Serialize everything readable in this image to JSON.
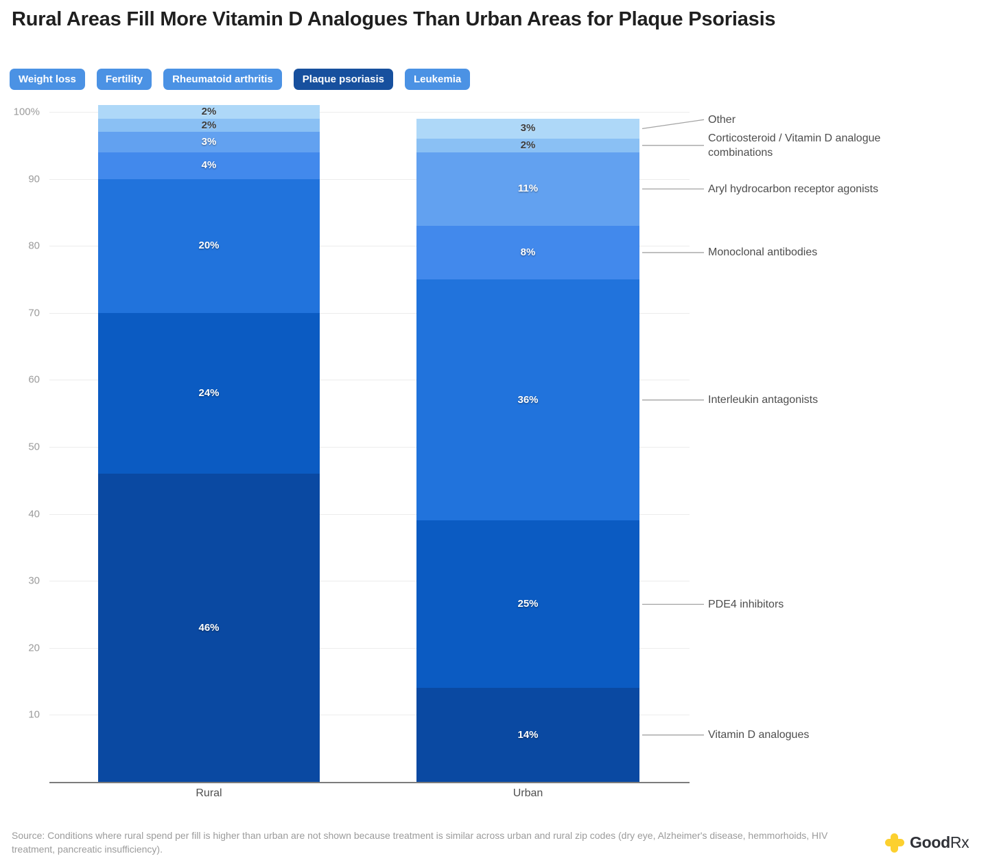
{
  "title": "Rural Areas Fill More Vitamin D Analogues Than Urban Areas for Plaque Psoriasis",
  "tabs": [
    {
      "label": "Weight loss",
      "active": false
    },
    {
      "label": "Fertility",
      "active": false
    },
    {
      "label": "Rheumatoid arthritis",
      "active": false
    },
    {
      "label": "Plaque psoriasis",
      "active": true
    },
    {
      "label": "Leukemia",
      "active": false
    }
  ],
  "tab_colors": {
    "active_bg": "#17509e",
    "inactive_bg": "#4b92e4",
    "text": "#ffffff"
  },
  "chart_data": {
    "type": "bar",
    "stacked": true,
    "orientation": "vertical",
    "categories": [
      "Rural",
      "Urban"
    ],
    "series": [
      {
        "name": "Vitamin D analogues",
        "values": [
          46,
          14
        ],
        "color": "#0a49a2",
        "label_style": "on-dark"
      },
      {
        "name": "PDE4 inhibitors",
        "values": [
          24,
          25
        ],
        "color": "#0b5bc2",
        "label_style": "on-dark"
      },
      {
        "name": "Interleukin antagonists",
        "values": [
          20,
          36
        ],
        "color": "#2173dc",
        "label_style": "on-dark"
      },
      {
        "name": "Monoclonal antibodies",
        "values": [
          4,
          8
        ],
        "color": "#4289ec",
        "label_style": "on-dark"
      },
      {
        "name": "Aryl hydrocarbon receptor agonists",
        "values": [
          3,
          11
        ],
        "color": "#62a1f0",
        "label_style": "on-dark"
      },
      {
        "name": "Corticosteroid / Vitamin D analogue combinations",
        "values": [
          2,
          2
        ],
        "color": "#8ac0f4",
        "label_style": "on-light"
      },
      {
        "name": "Other",
        "values": [
          2,
          3
        ],
        "color": "#aed8f8",
        "label_style": "on-light"
      }
    ],
    "value_suffix": "%",
    "y_ticks": [
      10,
      20,
      30,
      40,
      50,
      60,
      70,
      80,
      90,
      100
    ],
    "y_top_tick_label": "100%",
    "ylim": [
      0,
      100
    ],
    "grid": true,
    "legend_position": "right-annotations",
    "grid_color": "#ececec",
    "axis_color": "#7c7c7c",
    "tick_color": "#9b9b9b",
    "annotation_color": "#4d4d4d",
    "connector_color": "#a3a3a3"
  },
  "source": {
    "text": "Source: Conditions where rural spend per fill is higher than urban are not shown because treatment is similar across urban and rural zip codes (dry eye, Alzheimer's disease, hemmorhoids, HIV treatment, pancreatic insufficiency)."
  },
  "logo": {
    "part1": "Good",
    "part2": "Rx",
    "brand_yellow": "#fcd02f"
  }
}
